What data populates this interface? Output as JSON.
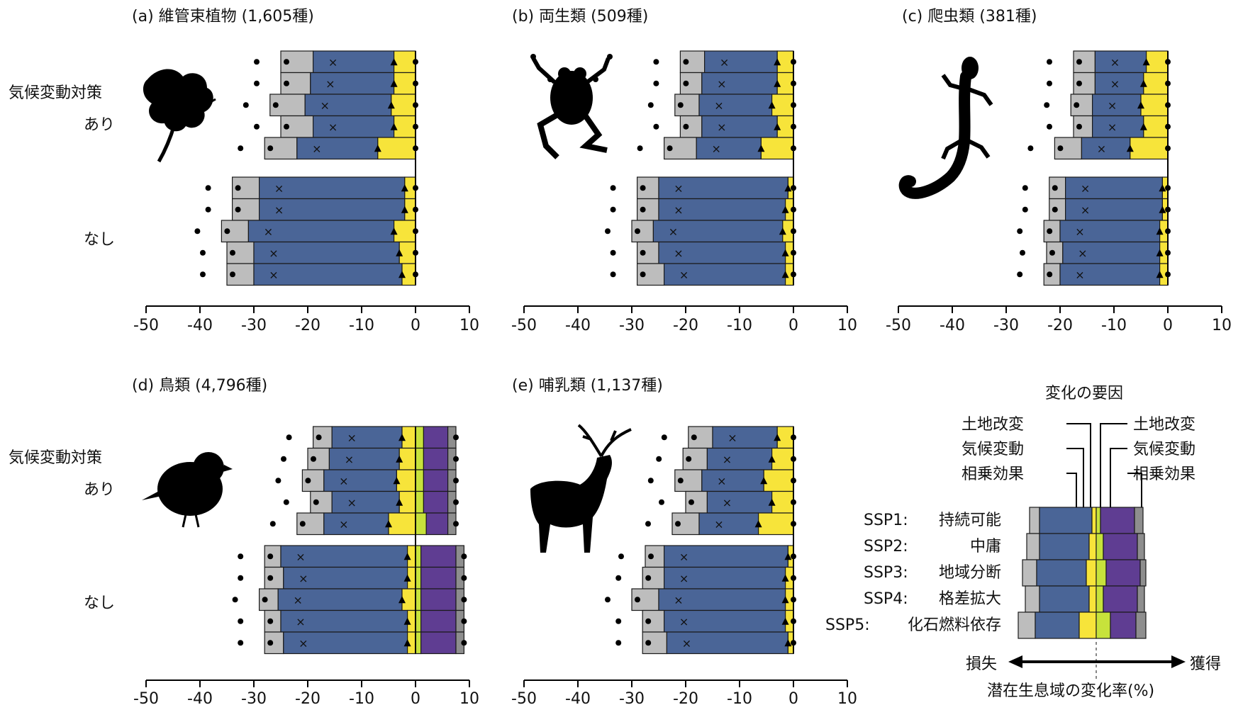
{
  "row_labels": {
    "mitigation_line1": "気候変動対策",
    "mitigation_line2": "あり",
    "none": "なし"
  },
  "chart_data": {
    "type": "bar",
    "stacked": true,
    "x_ticks": [
      -50,
      -40,
      -30,
      -20,
      -10,
      0,
      10
    ],
    "xlim": [
      -50,
      10
    ],
    "scenarios": [
      "SSP1",
      "SSP2",
      "SSP3",
      "SSP4",
      "SSP5"
    ],
    "groups": [
      "あり",
      "なし"
    ],
    "components": [
      "相乗効果",
      "気候変動",
      "土地改変",
      "土地改変",
      "気候変動",
      "相乗効果"
    ],
    "colors": {
      "grey": "#bdbdbd",
      "blue": "#4a6597",
      "yellow": "#f7e43a",
      "lime": "#c7e23b",
      "purple": "#5f3d92",
      "darkgrey": "#8e8e8e",
      "edge": "#1a1a1a"
    },
    "panels": [
      {
        "title": "(a) 維管束植物 (1,605種)",
        "icon": "leaf-icon",
        "bars": [
          {
            "g": "あり",
            "neg": [
              -25,
              -19,
              -4
            ],
            "pos": [
              0,
              0,
              0
            ]
          },
          {
            "g": "あり",
            "neg": [
              -25,
              -19.5,
              -4
            ],
            "pos": [
              0,
              0,
              0
            ]
          },
          {
            "g": "あり",
            "neg": [
              -27,
              -20.5,
              -4.5
            ],
            "pos": [
              0,
              0,
              0
            ]
          },
          {
            "g": "あり",
            "neg": [
              -25,
              -19,
              -4
            ],
            "pos": [
              0,
              0,
              0
            ]
          },
          {
            "g": "あり",
            "neg": [
              -28,
              -22,
              -7
            ],
            "pos": [
              0,
              0,
              0
            ]
          },
          {
            "g": "なし",
            "neg": [
              -34,
              -29,
              -2
            ],
            "pos": [
              0,
              0,
              0
            ]
          },
          {
            "g": "なし",
            "neg": [
              -34,
              -29,
              -2
            ],
            "pos": [
              0,
              0,
              0
            ]
          },
          {
            "g": "なし",
            "neg": [
              -36,
              -31,
              -4
            ],
            "pos": [
              0,
              0,
              0
            ]
          },
          {
            "g": "なし",
            "neg": [
              -35,
              -30,
              -3
            ],
            "pos": [
              0,
              0,
              0
            ]
          },
          {
            "g": "なし",
            "neg": [
              -35,
              -30,
              -2.5
            ],
            "pos": [
              0,
              0,
              0
            ]
          }
        ]
      },
      {
        "title": "(b) 両生類 (509種)",
        "icon": "frog-icon",
        "bars": [
          {
            "g": "あり",
            "neg": [
              -21,
              -16.5,
              -3
            ],
            "pos": [
              0,
              0,
              0
            ]
          },
          {
            "g": "あり",
            "neg": [
              -21,
              -17,
              -3
            ],
            "pos": [
              0,
              0,
              0
            ]
          },
          {
            "g": "あり",
            "neg": [
              -22,
              -17.5,
              -4
            ],
            "pos": [
              0,
              0,
              0
            ]
          },
          {
            "g": "あり",
            "neg": [
              -21,
              -17,
              -3
            ],
            "pos": [
              0,
              0,
              0
            ]
          },
          {
            "g": "あり",
            "neg": [
              -24,
              -18,
              -6
            ],
            "pos": [
              0,
              0,
              0
            ]
          },
          {
            "g": "なし",
            "neg": [
              -29,
              -25,
              -1
            ],
            "pos": [
              0,
              0,
              0
            ]
          },
          {
            "g": "なし",
            "neg": [
              -29,
              -25,
              -1.5
            ],
            "pos": [
              0,
              0,
              0
            ]
          },
          {
            "g": "なし",
            "neg": [
              -30,
              -26,
              -2
            ],
            "pos": [
              0,
              0,
              0
            ]
          },
          {
            "g": "なし",
            "neg": [
              -29,
              -25,
              -1.5
            ],
            "pos": [
              0,
              0,
              0
            ]
          },
          {
            "g": "なし",
            "neg": [
              -29,
              -24,
              -1.5
            ],
            "pos": [
              0,
              0,
              0
            ]
          }
        ]
      },
      {
        "title": "(c) 爬虫類 (381種)",
        "icon": "gecko-icon",
        "bars": [
          {
            "g": "あり",
            "neg": [
              -17.5,
              -13.5,
              -4
            ],
            "pos": [
              0,
              0,
              0
            ]
          },
          {
            "g": "あり",
            "neg": [
              -17.5,
              -13.5,
              -4.5
            ],
            "pos": [
              0,
              0,
              0
            ]
          },
          {
            "g": "あり",
            "neg": [
              -18,
              -14,
              -5
            ],
            "pos": [
              0,
              0,
              0
            ]
          },
          {
            "g": "あり",
            "neg": [
              -17.5,
              -14,
              -4.5
            ],
            "pos": [
              0,
              0,
              0
            ]
          },
          {
            "g": "あり",
            "neg": [
              -21,
              -16,
              -7
            ],
            "pos": [
              0,
              0,
              0
            ]
          },
          {
            "g": "なし",
            "neg": [
              -22,
              -19,
              -1
            ],
            "pos": [
              0,
              0,
              0
            ]
          },
          {
            "g": "なし",
            "neg": [
              -22,
              -19,
              -1
            ],
            "pos": [
              0,
              0,
              0
            ]
          },
          {
            "g": "なし",
            "neg": [
              -23,
              -20,
              -1.5
            ],
            "pos": [
              0,
              0,
              0
            ]
          },
          {
            "g": "なし",
            "neg": [
              -22.5,
              -19.5,
              -1.5
            ],
            "pos": [
              0,
              0,
              0
            ]
          },
          {
            "g": "なし",
            "neg": [
              -23,
              -20,
              -1.5
            ],
            "pos": [
              0,
              0,
              0
            ]
          }
        ]
      },
      {
        "title": "(d) 鳥類 (4,796種)",
        "icon": "bird-icon",
        "bars": [
          {
            "g": "あり",
            "neg": [
              -19,
              -15.5,
              -2.5
            ],
            "pos": [
              1.5,
              6,
              7.5
            ]
          },
          {
            "g": "あり",
            "neg": [
              -20,
              -16,
              -3
            ],
            "pos": [
              1.5,
              6,
              7.5
            ]
          },
          {
            "g": "あり",
            "neg": [
              -21,
              -17,
              -3.5
            ],
            "pos": [
              1.5,
              6,
              7.5
            ]
          },
          {
            "g": "あり",
            "neg": [
              -19.5,
              -15.5,
              -3
            ],
            "pos": [
              1.5,
              6,
              7.5
            ]
          },
          {
            "g": "あり",
            "neg": [
              -22,
              -17,
              -5
            ],
            "pos": [
              2,
              6,
              7.5
            ]
          },
          {
            "g": "なし",
            "neg": [
              -28,
              -25,
              -1.5
            ],
            "pos": [
              1,
              7.5,
              9
            ]
          },
          {
            "g": "なし",
            "neg": [
              -28,
              -24.5,
              -1.5
            ],
            "pos": [
              1,
              7.5,
              9
            ]
          },
          {
            "g": "なし",
            "neg": [
              -29,
              -25.5,
              -2.5
            ],
            "pos": [
              1,
              7.5,
              9
            ]
          },
          {
            "g": "なし",
            "neg": [
              -28,
              -25,
              -1.5
            ],
            "pos": [
              1,
              7.5,
              9
            ]
          },
          {
            "g": "なし",
            "neg": [
              -28,
              -24.5,
              -1.5
            ],
            "pos": [
              1,
              7.5,
              9
            ]
          }
        ]
      },
      {
        "title": "(e) 哺乳類 (1,137種)",
        "icon": "deer-icon",
        "bars": [
          {
            "g": "あり",
            "neg": [
              -19.5,
              -15,
              -3
            ],
            "pos": [
              0,
              0,
              0
            ]
          },
          {
            "g": "あり",
            "neg": [
              -20.5,
              -16,
              -4
            ],
            "pos": [
              0,
              0,
              0
            ]
          },
          {
            "g": "あり",
            "neg": [
              -22,
              -17,
              -5.5
            ],
            "pos": [
              0,
              0,
              0
            ]
          },
          {
            "g": "あり",
            "neg": [
              -20,
              -16,
              -4
            ],
            "pos": [
              0,
              0,
              0
            ]
          },
          {
            "g": "あり",
            "neg": [
              -22.5,
              -17.5,
              -6.5
            ],
            "pos": [
              0,
              0,
              0
            ]
          },
          {
            "g": "なし",
            "neg": [
              -27.5,
              -24,
              -1
            ],
            "pos": [
              0,
              0,
              0
            ]
          },
          {
            "g": "なし",
            "neg": [
              -28,
              -24,
              -1.5
            ],
            "pos": [
              0,
              0,
              0
            ]
          },
          {
            "g": "なし",
            "neg": [
              -30,
              -25,
              -1.5
            ],
            "pos": [
              0,
              0,
              0
            ]
          },
          {
            "g": "なし",
            "neg": [
              -28,
              -24,
              -1.5
            ],
            "pos": [
              0,
              0,
              0
            ]
          },
          {
            "g": "なし",
            "neg": [
              -28,
              -23.5,
              -1
            ],
            "pos": [
              0,
              0,
              0
            ]
          }
        ]
      }
    ]
  },
  "legend": {
    "title": "変化の要因",
    "left_labels": [
      "土地改変",
      "気候変動",
      "相乗効果"
    ],
    "right_labels": [
      "土地改変",
      "気候変動",
      "相乗効果"
    ],
    "scenarios": [
      {
        "code": "SSP1:",
        "name": "持続可能"
      },
      {
        "code": "SSP2:",
        "name": "中庸"
      },
      {
        "code": "SSP3:",
        "name": "地域分断"
      },
      {
        "code": "SSP4:",
        "name": "格差拡大"
      },
      {
        "code": "SSP5:",
        "name": "化石燃料依存"
      }
    ],
    "loss": "損失",
    "gain": "獲得",
    "xlabel": "潜在生息域の変化率(%)"
  }
}
